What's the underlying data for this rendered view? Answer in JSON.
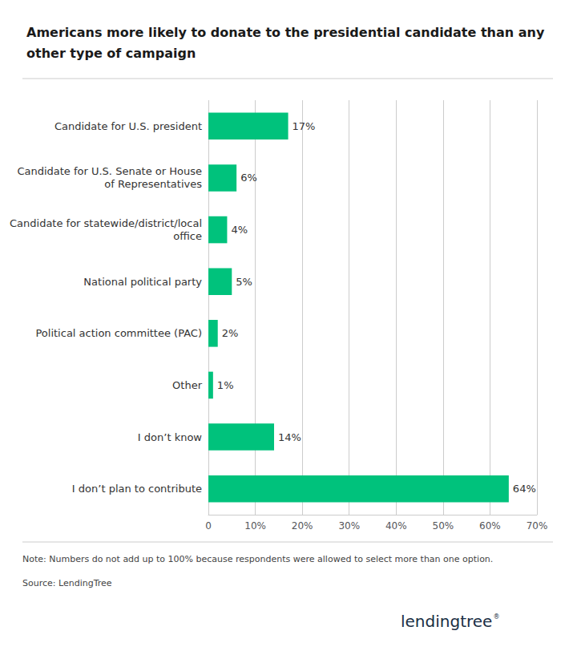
{
  "chart_data": {
    "type": "bar",
    "orientation": "horizontal",
    "title": "Americans more likely to donate to the presidential candidate than any\nother type of campaign",
    "categories": [
      "Candidate for U.S. president",
      "Candidate for U.S. Senate or House\nof Representatives",
      "Candidate for statewide/district/local\noffice",
      "National political party",
      "Political action committee (PAC)",
      "Other",
      "I don’t know",
      "I don’t plan to contribute"
    ],
    "values": [
      17,
      6,
      4,
      5,
      2,
      1,
      14,
      64
    ],
    "value_labels": [
      "17%",
      "6%",
      "4%",
      "5%",
      "2%",
      "1%",
      "14%",
      "64%"
    ],
    "data_labels": true,
    "color": "#00c27c",
    "xlim": [
      0,
      70
    ],
    "xticks": [
      0,
      {
        "value": 10,
        "label": "10%"
      },
      {
        "value": 20,
        "label": "20%"
      },
      {
        "value": 30,
        "label": "30%"
      },
      {
        "value": 40,
        "label": "40%"
      },
      {
        "value": 50,
        "label": "50%"
      },
      {
        "value": 60,
        "label": "60%"
      },
      {
        "value": 70,
        "label": "70%"
      }
    ],
    "grid": true,
    "annotations": [
      "Note: Numbers do not add up to 100% because respondents were allowed to select more than one option.",
      "Source: LendingTree",
      "lendingtree",
      "®"
    ]
  }
}
